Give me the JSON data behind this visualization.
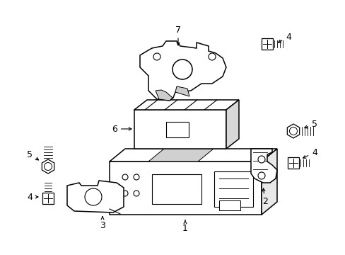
{
  "background_color": "#ffffff",
  "line_color": "#000000",
  "line_width": 1.1,
  "fig_width": 4.89,
  "fig_height": 3.6,
  "dpi": 100
}
